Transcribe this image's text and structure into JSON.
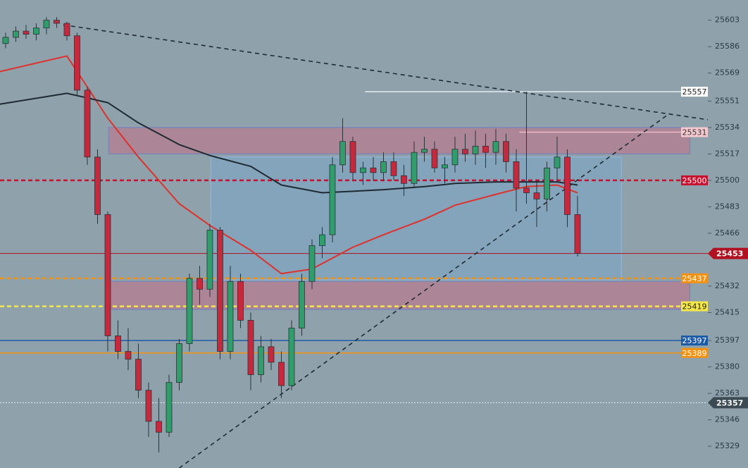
{
  "chart_data": {
    "type": "candlestick",
    "background": "#8fa2ab",
    "xlim": [
      -0.55,
      68.76
    ],
    "ylim": [
      25315,
      25616
    ],
    "yticks": [
      25603,
      25586,
      25569,
      25551,
      25534,
      25517,
      25500,
      25483,
      25466,
      25432,
      25415,
      25397,
      25380,
      25363,
      25346,
      25329
    ],
    "up_color": "#2f9e6a",
    "down_color": "#c8283c",
    "ohlc": [
      [
        25588,
        25595,
        25585,
        25592
      ],
      [
        25592,
        25599,
        25589,
        25596
      ],
      [
        25596,
        25600,
        25591,
        25594
      ],
      [
        25594,
        25601,
        25590,
        25598
      ],
      [
        25598,
        25605,
        25594,
        25603
      ],
      [
        25603,
        25605,
        25598,
        25601
      ],
      [
        25601,
        25602,
        25590,
        25593
      ],
      [
        25593,
        25595,
        25555,
        25558
      ],
      [
        25558,
        25560,
        25510,
        25515
      ],
      [
        25515,
        25520,
        25472,
        25478
      ],
      [
        25478,
        25480,
        25390,
        25400
      ],
      [
        25400,
        25410,
        25385,
        25390
      ],
      [
        25390,
        25405,
        25378,
        25385
      ],
      [
        25385,
        25395,
        25360,
        25365
      ],
      [
        25365,
        25370,
        25335,
        25345
      ],
      [
        25345,
        25360,
        25325,
        25338
      ],
      [
        25338,
        25375,
        25335,
        25370
      ],
      [
        25370,
        25398,
        25365,
        25395
      ],
      [
        25395,
        25440,
        25390,
        25437
      ],
      [
        25437,
        25445,
        25420,
        25430
      ],
      [
        25430,
        25472,
        25425,
        25468
      ],
      [
        25468,
        25470,
        25385,
        25390
      ],
      [
        25390,
        25445,
        25385,
        25435
      ],
      [
        25435,
        25440,
        25405,
        25410
      ],
      [
        25410,
        25415,
        25365,
        25375
      ],
      [
        25375,
        25400,
        25370,
        25393
      ],
      [
        25393,
        25398,
        25378,
        25383
      ],
      [
        25383,
        25390,
        25360,
        25368
      ],
      [
        25368,
        25410,
        25365,
        25405
      ],
      [
        25405,
        25440,
        25400,
        25435
      ],
      [
        25435,
        25462,
        25430,
        25458
      ],
      [
        25458,
        25470,
        25450,
        25465
      ],
      [
        25465,
        25515,
        25460,
        25510
      ],
      [
        25510,
        25540,
        25505,
        25525
      ],
      [
        25525,
        25528,
        25500,
        25505
      ],
      [
        25505,
        25512,
        25497,
        25508
      ],
      [
        25508,
        25515,
        25500,
        25505
      ],
      [
        25505,
        25518,
        25500,
        25512
      ],
      [
        25512,
        25518,
        25500,
        25503
      ],
      [
        25503,
        25510,
        25490,
        25498
      ],
      [
        25498,
        25525,
        25495,
        25518
      ],
      [
        25518,
        25528,
        25512,
        25520
      ],
      [
        25520,
        25525,
        25505,
        25508
      ],
      [
        25508,
        25515,
        25498,
        25510
      ],
      [
        25510,
        25528,
        25505,
        25520
      ],
      [
        25520,
        25530,
        25512,
        25517
      ],
      [
        25517,
        25532,
        25510,
        25522
      ],
      [
        25522,
        25530,
        25508,
        25518
      ],
      [
        25518,
        25533,
        25510,
        25525
      ],
      [
        25525,
        25530,
        25505,
        25512
      ],
      [
        25512,
        25520,
        25480,
        25495
      ],
      [
        25495,
        25557,
        25485,
        25492
      ],
      [
        25492,
        25500,
        25470,
        25488
      ],
      [
        25488,
        25512,
        25480,
        25508
      ],
      [
        25508,
        25528,
        25500,
        25515
      ],
      [
        25515,
        25520,
        25470,
        25478
      ],
      [
        25478,
        25490,
        25451,
        25453
      ]
    ],
    "moving_averages": [
      {
        "color": "#e0302c",
        "x": [
          -0.55,
          6,
          10,
          13,
          17,
          20,
          24,
          27,
          30,
          34,
          37,
          41,
          44,
          48,
          51,
          54,
          56
        ],
        "values": [
          25570,
          25580,
          25540,
          25515,
          25485,
          25471,
          25455,
          25440,
          25443,
          25457,
          25465,
          25475,
          25484,
          25491,
          25496,
          25497,
          25492
        ]
      },
      {
        "color": "#1f2a32",
        "x": [
          -0.55,
          6,
          10,
          13,
          17,
          20,
          24,
          27,
          31,
          34,
          37,
          41,
          44,
          48,
          51,
          54,
          56
        ],
        "values": [
          25549,
          25556,
          25550,
          25537,
          25523,
          25516,
          25509,
          25497,
          25492,
          25493,
          25494,
          25496,
          25498,
          25499,
          25499,
          25499,
          25497
        ]
      }
    ],
    "trendlines": [
      {
        "color": "#1f2a32",
        "x": [
          5.65,
          68.76
        ],
        "values": [
          25600,
          25539
        ]
      },
      {
        "color": "#1f2a32",
        "x": [
          17.0,
          65.0
        ],
        "values": [
          25315,
          25543
        ]
      }
    ],
    "zones": [
      {
        "from": 10.1,
        "to": 67.0,
        "top": 25534,
        "bottom": 25517,
        "color": "#c46f86",
        "border": "#7c87b6"
      },
      {
        "from": 20.1,
        "to": 60.3,
        "top": 25515,
        "bottom": 25436,
        "color": "#7aa5c9",
        "border": "#8fb2cf"
      },
      {
        "from": 10.1,
        "to": 67.0,
        "top": 25435,
        "bottom": 25417,
        "color": "#c46f86",
        "border": "#7c87b6"
      }
    ],
    "levels": [
      {
        "value": 25557,
        "start": 35.2,
        "color": "#e6ecf0",
        "dash": "solid",
        "label_bg": "#ffffff",
        "label_color": "#222222"
      },
      {
        "value": 25531,
        "start": 50.3,
        "color": "#f0b8c2",
        "dash": "solid",
        "label_bg": "#f6c8cf",
        "label_color": "#333333"
      },
      {
        "value": 25500,
        "start": -0.55,
        "color": "#c8102e",
        "dash": "dashed",
        "label_bg": "#c8102e",
        "label_color": "#ffffff"
      },
      {
        "value": 25437,
        "start": -0.55,
        "color": "#f39212",
        "dash": "dashed",
        "label_bg": "#f39212",
        "label_color": "#ffffff"
      },
      {
        "value": 25419,
        "start": -0.55,
        "color": "#f5e84a",
        "dash": "dashed",
        "label_bg": "#f5e84a",
        "label_color": "#222222"
      },
      {
        "value": 25397,
        "start": -0.55,
        "color": "#1d5aa6",
        "dash": "solid",
        "label_bg": "#1d5aa6",
        "label_color": "#ffffff"
      },
      {
        "value": 25389,
        "start": -0.55,
        "color": "#f39212",
        "dash": "solid",
        "label_bg": "#f39212",
        "label_color": "#ffffff"
      }
    ],
    "price_tags": [
      {
        "value": 25453,
        "color": "#b0101f",
        "line": "solid"
      },
      {
        "value": 25357,
        "color": "#3b4a53",
        "line": "dotted"
      }
    ]
  }
}
